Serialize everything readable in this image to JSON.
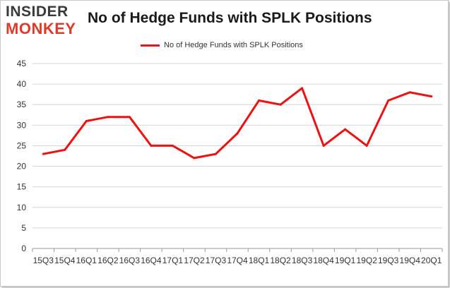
{
  "brand": {
    "line1": "INSIDER",
    "line2": "MONKEY",
    "accent_color": "#e03a2a"
  },
  "chart_data": {
    "type": "line",
    "title": "No of Hedge Funds with SPLK Positions",
    "xlabel": "",
    "ylabel": "",
    "ylim": [
      0,
      45
    ],
    "yticks": [
      0,
      5,
      10,
      15,
      20,
      25,
      30,
      35,
      40,
      45
    ],
    "grid": true,
    "legend_position": "top-center",
    "categories": [
      "15Q3",
      "15Q4",
      "16Q1",
      "16Q2",
      "16Q3",
      "16Q4",
      "17Q1",
      "17Q2",
      "17Q3",
      "17Q4",
      "18Q1",
      "18Q2",
      "18Q3",
      "18Q4",
      "19Q1",
      "19Q2",
      "19Q3",
      "19Q4",
      "20Q1"
    ],
    "series": [
      {
        "name": "No of Hedge Funds with SPLK Positions",
        "color": "#ee1111",
        "values": [
          23,
          24,
          31,
          32,
          32,
          25,
          25,
          22,
          23,
          28,
          36,
          35,
          39,
          25,
          29,
          25,
          36,
          38,
          37
        ]
      }
    ]
  }
}
